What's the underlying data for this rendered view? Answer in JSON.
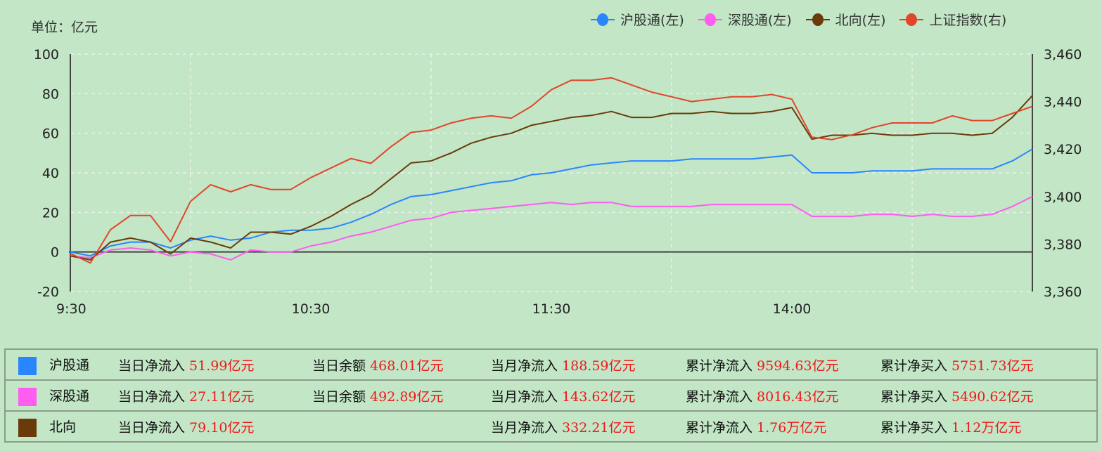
{
  "unit_label": "单位：亿元",
  "legend": [
    {
      "label": "沪股通(左)",
      "color": "#2a86ff"
    },
    {
      "label": "深股通(左)",
      "color": "#ff5cf0"
    },
    {
      "label": "北向(左)",
      "color": "#6b3a0a"
    },
    {
      "label": "上证指数(右)",
      "color": "#e0462a"
    }
  ],
  "chart_data": {
    "type": "line",
    "title": "",
    "xlabel": "",
    "ylabel": "单位：亿元",
    "x_ticks": [
      "9:30",
      "10:30",
      "11:30",
      "14:00"
    ],
    "left_axis": {
      "ticks": [
        100,
        80,
        60,
        40,
        20,
        0,
        -20
      ],
      "range": [
        -20,
        100
      ]
    },
    "right_axis": {
      "ticks": [
        "3,460",
        "3,440",
        "3,420",
        "3,400",
        "3,380",
        "3,360"
      ],
      "range": [
        3360,
        3460
      ]
    },
    "grid": true,
    "legend_position": "top-right",
    "x_minutes": [
      0,
      5,
      10,
      15,
      20,
      25,
      30,
      35,
      40,
      45,
      50,
      55,
      60,
      65,
      70,
      75,
      80,
      85,
      90,
      95,
      100,
      105,
      110,
      115,
      120,
      125,
      130,
      135,
      140,
      145,
      150,
      155,
      160,
      165,
      170,
      175,
      180,
      185,
      190,
      195,
      200,
      205,
      210,
      215,
      220,
      225,
      230,
      235,
      240
    ],
    "series": [
      {
        "name": "沪股通(左)",
        "axis": "left",
        "color": "#2a86ff",
        "values": [
          0,
          -2,
          3,
          5,
          5,
          2,
          6,
          8,
          6,
          7,
          10,
          11,
          11,
          12,
          15,
          19,
          24,
          28,
          29,
          31,
          33,
          35,
          36,
          39,
          40,
          42,
          44,
          45,
          46,
          46,
          46,
          47,
          47,
          47,
          47,
          48,
          49,
          40,
          40,
          40,
          41,
          41,
          41,
          42,
          42,
          42,
          42,
          46,
          52
        ]
      },
      {
        "name": "深股通(左)",
        "axis": "left",
        "color": "#ff5cf0",
        "values": [
          -2,
          -3,
          1,
          2,
          1,
          -2,
          0,
          -1,
          -4,
          1,
          0,
          0,
          3,
          5,
          8,
          10,
          13,
          16,
          17,
          20,
          21,
          22,
          23,
          24,
          25,
          24,
          25,
          25,
          23,
          23,
          23,
          23,
          24,
          24,
          24,
          24,
          24,
          18,
          18,
          18,
          19,
          19,
          18,
          19,
          18,
          18,
          19,
          23,
          28
        ]
      },
      {
        "name": "北向(左)",
        "axis": "left",
        "color": "#6b3a0a",
        "values": [
          -2,
          -4,
          5,
          7,
          5,
          -1,
          7,
          5,
          2,
          10,
          10,
          9,
          13,
          18,
          24,
          29,
          37,
          45,
          46,
          50,
          55,
          58,
          60,
          64,
          66,
          68,
          69,
          71,
          68,
          68,
          70,
          70,
          71,
          70,
          70,
          71,
          73,
          57,
          59,
          59,
          60,
          59,
          59,
          60,
          60,
          59,
          60,
          68,
          79
        ]
      },
      {
        "name": "上证指数(右)",
        "axis": "right",
        "color": "#e0462a",
        "values": [
          3376,
          3372,
          3386,
          3392,
          3392,
          3381,
          3398,
          3405,
          3402,
          3405,
          3403,
          3403,
          3408,
          3412,
          3416,
          3414,
          3421,
          3427,
          3428,
          3431,
          3433,
          3434,
          3433,
          3438,
          3445,
          3449,
          3449,
          3450,
          3447,
          3444,
          3442,
          3440,
          3441,
          3442,
          3442,
          3443,
          3441,
          3425,
          3424,
          3426,
          3429,
          3431,
          3431,
          3431,
          3434,
          3432,
          3432,
          3435,
          3438
        ]
      }
    ]
  },
  "table": {
    "rows": [
      {
        "name": "沪股通",
        "color": "#2a86ff",
        "cells": [
          {
            "label": "当日净流入",
            "value": "51.99亿元"
          },
          {
            "label": "当日余额",
            "value": "468.01亿元"
          },
          {
            "label": "当月净流入",
            "value": "188.59亿元"
          },
          {
            "label": "累计净流入",
            "value": "9594.63亿元"
          },
          {
            "label": "累计净买入",
            "value": "5751.73亿元"
          }
        ]
      },
      {
        "name": "深股通",
        "color": "#ff5cf0",
        "cells": [
          {
            "label": "当日净流入",
            "value": "27.11亿元"
          },
          {
            "label": "当日余额",
            "value": "492.89亿元"
          },
          {
            "label": "当月净流入",
            "value": "143.62亿元"
          },
          {
            "label": "累计净流入",
            "value": "8016.43亿元"
          },
          {
            "label": "累计净买入",
            "value": "5490.62亿元"
          }
        ]
      },
      {
        "name": "北向",
        "color": "#6b3a0a",
        "cells": [
          {
            "label": "当日净流入",
            "value": "79.10亿元"
          },
          {
            "label": "",
            "value": ""
          },
          {
            "label": "当月净流入",
            "value": "332.21亿元"
          },
          {
            "label": "累计净流入",
            "value": "1.76万亿元"
          },
          {
            "label": "累计净买入",
            "value": "1.12万亿元"
          }
        ]
      }
    ]
  }
}
